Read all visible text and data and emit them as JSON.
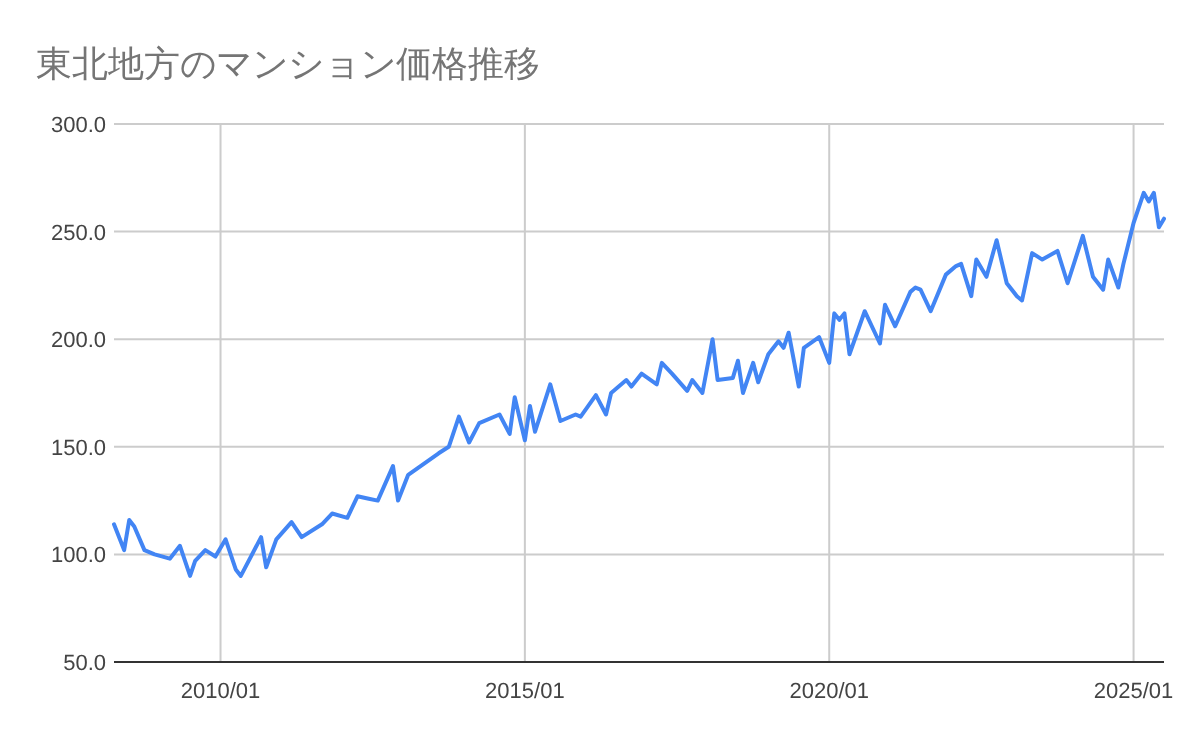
{
  "chart_data": {
    "type": "line",
    "title": "東北地方のマンション価格推移",
    "x": [
      "2008-04",
      "2008-06",
      "2008-07",
      "2008-08",
      "2008-10",
      "2008-12",
      "2009-03",
      "2009-05",
      "2009-07",
      "2009-08",
      "2009-10",
      "2009-12",
      "2010-02",
      "2010-04",
      "2010-05",
      "2010-09",
      "2010-10",
      "2010-12",
      "2011-03",
      "2011-05",
      "2011-09",
      "2011-11",
      "2012-02",
      "2012-04",
      "2012-06",
      "2012-08",
      "2012-11",
      "2012-12",
      "2013-02",
      "2013-05",
      "2013-08",
      "2013-10",
      "2013-12",
      "2014-02",
      "2014-04",
      "2014-08",
      "2014-10",
      "2014-11",
      "2015-01",
      "2015-02",
      "2015-03",
      "2015-06",
      "2015-08",
      "2015-11",
      "2015-12",
      "2016-03",
      "2016-05",
      "2016-06",
      "2016-09",
      "2016-10",
      "2016-12",
      "2017-03",
      "2017-04",
      "2017-06",
      "2017-09",
      "2017-10",
      "2017-12",
      "2018-02",
      "2018-03",
      "2018-06",
      "2018-07",
      "2018-08",
      "2018-10",
      "2018-11",
      "2019-01",
      "2019-03",
      "2019-04",
      "2019-05",
      "2019-07",
      "2019-08",
      "2019-11",
      "2020-01",
      "2020-02",
      "2020-03",
      "2020-04",
      "2020-05",
      "2020-08",
      "2020-11",
      "2020-12",
      "2021-02",
      "2021-05",
      "2021-06",
      "2021-07",
      "2021-09",
      "2021-12",
      "2022-02",
      "2022-03",
      "2022-05",
      "2022-06",
      "2022-08",
      "2022-10",
      "2022-12",
      "2023-02",
      "2023-03",
      "2023-05",
      "2023-07",
      "2023-10",
      "2023-12",
      "2024-03",
      "2024-05",
      "2024-07",
      "2024-08",
      "2024-10",
      "2024-11",
      "2025-01",
      "2025-03",
      "2025-04",
      "2025-05",
      "2025-06",
      "2025-07"
    ],
    "series": [
      {
        "color": "#4285f4",
        "values": [
          114,
          102,
          116,
          113,
          102,
          100,
          98,
          104,
          90,
          97,
          102,
          99,
          107,
          93,
          90,
          108,
          94,
          107,
          115,
          108,
          114,
          119,
          117,
          127,
          126,
          125,
          141,
          125,
          137,
          142,
          147,
          150,
          164,
          152,
          161,
          165,
          156,
          173,
          153,
          169,
          157,
          179,
          162,
          165,
          164,
          174,
          165,
          175,
          181,
          178,
          184,
          179,
          189,
          184,
          176,
          181,
          175,
          200,
          181,
          182,
          190,
          175,
          189,
          180,
          193,
          199,
          196,
          203,
          178,
          196,
          201,
          189,
          212,
          209,
          212,
          193,
          213,
          198,
          216,
          206,
          222,
          224,
          223,
          213,
          230,
          234,
          235,
          220,
          237,
          229,
          246,
          226,
          220,
          218,
          240,
          237,
          241,
          226,
          248,
          229,
          223,
          237,
          224,
          235,
          254,
          268,
          264,
          268,
          252,
          256
        ]
      }
    ],
    "xlim": [
      "2008-04",
      "2025-07"
    ],
    "xticks": [
      {
        "value": "2010-01",
        "label": "2010/01"
      },
      {
        "value": "2015-01",
        "label": "2015/01"
      },
      {
        "value": "2020-01",
        "label": "2020/01"
      },
      {
        "value": "2025-01",
        "label": "2025/01"
      }
    ],
    "ylim": [
      50,
      300
    ],
    "yticks": [
      {
        "value": 50,
        "label": "50.0"
      },
      {
        "value": 100,
        "label": "100.0"
      },
      {
        "value": 150,
        "label": "150.0"
      },
      {
        "value": 200,
        "label": "200.0"
      },
      {
        "value": 250,
        "label": "250.0"
      },
      {
        "value": 300,
        "label": "300.0"
      }
    ],
    "grid": true,
    "marker": "none",
    "line_style": "solid"
  }
}
